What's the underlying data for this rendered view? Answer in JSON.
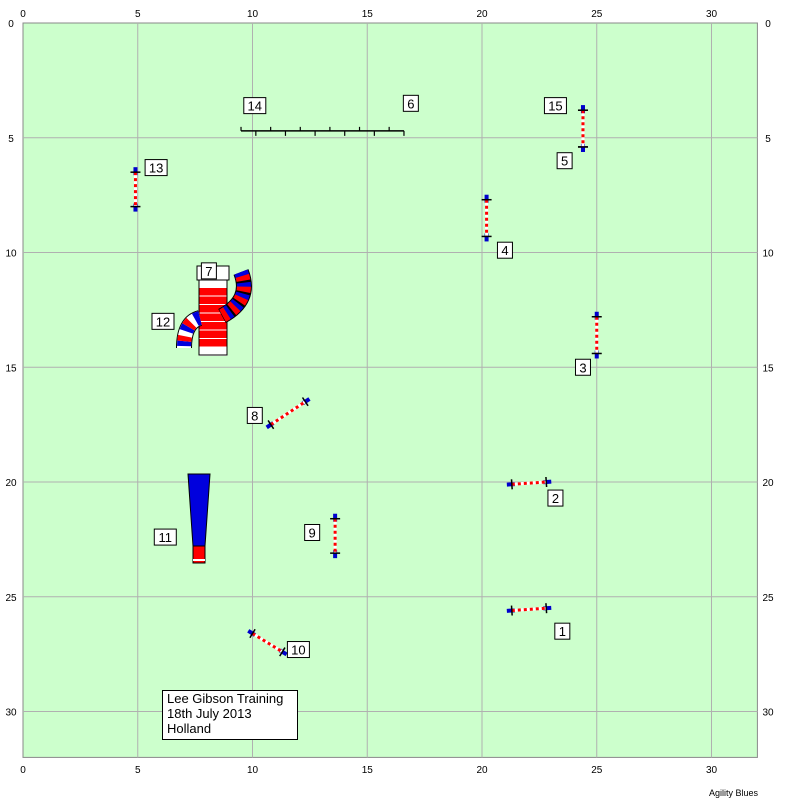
{
  "course": {
    "width_m": 32,
    "height_m": 32,
    "background": "#ccffcc",
    "grid_color": "#b0b0b0",
    "x_ticks": [
      0,
      5,
      10,
      15,
      20,
      25,
      30
    ],
    "y_ticks": [
      0,
      5,
      10,
      15,
      20,
      25,
      30
    ]
  },
  "colors": {
    "pole_red": "#ff0000",
    "pole_white": "#ffffff",
    "wing_blue": "#0000cc",
    "tunnel_red": "#ff0000",
    "tunnel_blue": "#0000dd",
    "weave_black": "#000000"
  },
  "jumps": [
    {
      "label": "1",
      "x1": 21.3,
      "y1": 25.6,
      "x2": 22.8,
      "y2": 25.5,
      "label_x": 23.5,
      "label_y": 26.5
    },
    {
      "label": "2",
      "x1": 21.3,
      "y1": 20.1,
      "x2": 22.8,
      "y2": 20.0,
      "label_x": 23.2,
      "label_y": 20.7
    },
    {
      "label": "3",
      "x1": 25.0,
      "y1": 12.8,
      "x2": 25.0,
      "y2": 14.4,
      "label_x": 24.4,
      "label_y": 15.0
    },
    {
      "label": "4",
      "x1": 20.2,
      "y1": 7.7,
      "x2": 20.2,
      "y2": 9.3,
      "label_x": 21.0,
      "label_y": 9.9
    },
    {
      "label": "5",
      "x1": 24.4,
      "y1": 3.8,
      "x2": 24.4,
      "y2": 5.4,
      "label_x": 23.6,
      "label_y": 6.0
    },
    {
      "label": "8",
      "x1": 10.8,
      "y1": 17.5,
      "x2": 12.3,
      "y2": 16.5,
      "label_x": 10.1,
      "label_y": 17.1
    },
    {
      "label": "9",
      "x1": 13.6,
      "y1": 21.6,
      "x2": 13.6,
      "y2": 23.1,
      "label_x": 12.6,
      "label_y": 22.2
    },
    {
      "label": "10",
      "x1": 10.0,
      "y1": 26.6,
      "x2": 11.3,
      "y2": 27.4,
      "label_x": 12.0,
      "label_y": 27.3
    },
    {
      "label": "13",
      "x1": 4.9,
      "y1": 6.5,
      "x2": 4.9,
      "y2": 8.0,
      "label_x": 5.8,
      "label_y": 6.3
    },
    {
      "label": "15",
      "x1": 24.4,
      "y1": 3.8,
      "x2": 24.4,
      "y2": 5.4,
      "label_x": 23.2,
      "label_y": 3.6
    }
  ],
  "weave": {
    "label_start": "14",
    "label_end": "6",
    "x1": 9.5,
    "x2": 16.6,
    "y": 4.7,
    "poles": 12,
    "label_start_x": 10.1,
    "label_start_y": 3.6,
    "label_end_x": 16.9,
    "label_end_y": 3.5
  },
  "tunnel": {
    "label": "12",
    "label_x": 6.1,
    "label_y": 13.0
  },
  "dogwalk_label": {
    "label": "7",
    "x": 8.1,
    "y": 10.8
  },
  "chute": {
    "label": "11",
    "label_x": 6.2,
    "label_y": 22.4
  },
  "info": {
    "line1": "Lee Gibson Training",
    "line2": "18th July 2013",
    "line3": "Holland"
  },
  "footer": "Agility Blues"
}
